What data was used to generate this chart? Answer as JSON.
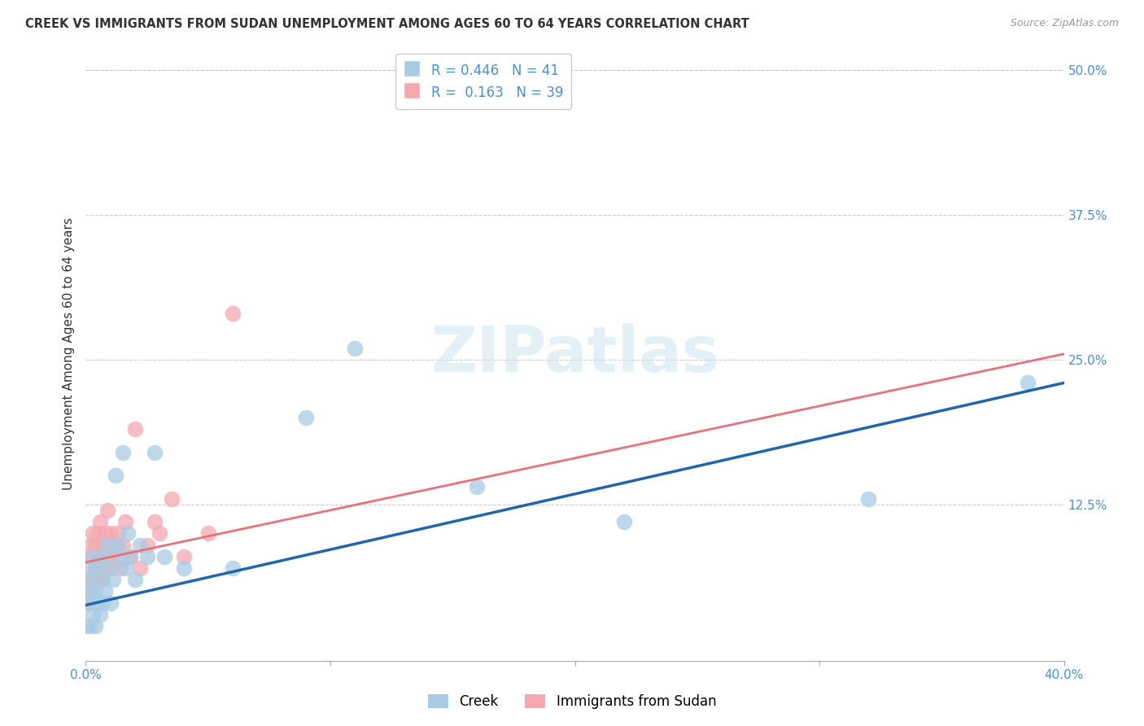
{
  "title": "CREEK VS IMMIGRANTS FROM SUDAN UNEMPLOYMENT AMONG AGES 60 TO 64 YEARS CORRELATION CHART",
  "source": "Source: ZipAtlas.com",
  "ylabel": "Unemployment Among Ages 60 to 64 years",
  "xlim": [
    0.0,
    0.4
  ],
  "ylim": [
    -0.01,
    0.52
  ],
  "yticks_right": [
    0.125,
    0.25,
    0.375,
    0.5
  ],
  "ytick_labels_right": [
    "12.5%",
    "25.0%",
    "37.5%",
    "50.0%"
  ],
  "creek_color": "#a8cce4",
  "sudan_color": "#f4a9b0",
  "creek_line_color": "#2166ac",
  "sudan_line_color": "#e8727a",
  "creek_R": 0.446,
  "creek_N": 41,
  "sudan_R": 0.163,
  "sudan_N": 39,
  "legend_label_creek": "Creek",
  "legend_label_sudan": "Immigrants from Sudan",
  "watermark": "ZIPatlas",
  "background_color": "#ffffff",
  "creek_scatter_x": [
    0.0005,
    0.001,
    0.001,
    0.002,
    0.002,
    0.002,
    0.003,
    0.003,
    0.004,
    0.004,
    0.005,
    0.005,
    0.006,
    0.006,
    0.007,
    0.007,
    0.008,
    0.009,
    0.01,
    0.01,
    0.011,
    0.012,
    0.013,
    0.014,
    0.015,
    0.016,
    0.017,
    0.018,
    0.02,
    0.022,
    0.025,
    0.028,
    0.032,
    0.04,
    0.06,
    0.09,
    0.11,
    0.16,
    0.22,
    0.32,
    0.385
  ],
  "creek_scatter_y": [
    0.02,
    0.04,
    0.06,
    0.02,
    0.05,
    0.07,
    0.03,
    0.08,
    0.02,
    0.05,
    0.04,
    0.07,
    0.03,
    0.06,
    0.04,
    0.08,
    0.05,
    0.09,
    0.04,
    0.07,
    0.06,
    0.15,
    0.09,
    0.08,
    0.17,
    0.07,
    0.1,
    0.08,
    0.06,
    0.09,
    0.08,
    0.17,
    0.08,
    0.07,
    0.07,
    0.2,
    0.26,
    0.14,
    0.11,
    0.13,
    0.23
  ],
  "sudan_scatter_x": [
    0.0005,
    0.001,
    0.001,
    0.002,
    0.002,
    0.003,
    0.003,
    0.003,
    0.004,
    0.004,
    0.005,
    0.005,
    0.005,
    0.006,
    0.006,
    0.007,
    0.007,
    0.008,
    0.008,
    0.009,
    0.009,
    0.01,
    0.01,
    0.011,
    0.012,
    0.013,
    0.014,
    0.015,
    0.016,
    0.018,
    0.02,
    0.022,
    0.025,
    0.028,
    0.03,
    0.035,
    0.04,
    0.05,
    0.06
  ],
  "sudan_scatter_y": [
    0.04,
    0.06,
    0.08,
    0.05,
    0.09,
    0.06,
    0.08,
    0.1,
    0.07,
    0.09,
    0.06,
    0.08,
    0.1,
    0.07,
    0.11,
    0.06,
    0.09,
    0.07,
    0.1,
    0.08,
    0.12,
    0.07,
    0.1,
    0.08,
    0.09,
    0.1,
    0.07,
    0.09,
    0.11,
    0.08,
    0.19,
    0.07,
    0.09,
    0.11,
    0.1,
    0.13,
    0.08,
    0.1,
    0.29
  ],
  "creek_line_x0": 0.0,
  "creek_line_y0": 0.038,
  "creek_line_x1": 0.4,
  "creek_line_y1": 0.23,
  "sudan_line_x0": 0.0,
  "sudan_line_y0": 0.075,
  "sudan_line_x1": 0.4,
  "sudan_line_y1": 0.255
}
